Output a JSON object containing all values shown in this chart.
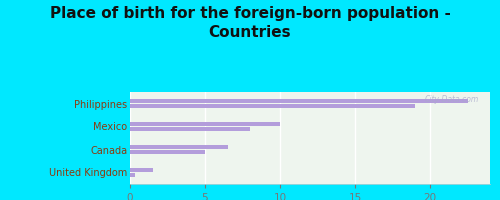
{
  "title": "Place of birth for the foreign-born population -\nCountries",
  "categories": [
    "Philippines",
    "Mexico",
    "Canada",
    "United Kingdom"
  ],
  "values1": [
    22.5,
    10.0,
    6.5,
    1.5
  ],
  "values2": [
    19.0,
    8.0,
    5.0,
    0.3
  ],
  "bar_color": "#b39ddb",
  "background_outer": "#00e8ff",
  "background_inner_top": "#eef5ee",
  "background_inner_bottom": "#e0f0e0",
  "xlim": [
    0,
    24
  ],
  "xticks": [
    0,
    5,
    10,
    15,
    20
  ],
  "label_color": "#8b3a0f",
  "tick_color": "#777777",
  "watermark": "City-Data.com",
  "title_fontsize": 11,
  "bar_height": 0.18,
  "bar_gap": 0.05
}
